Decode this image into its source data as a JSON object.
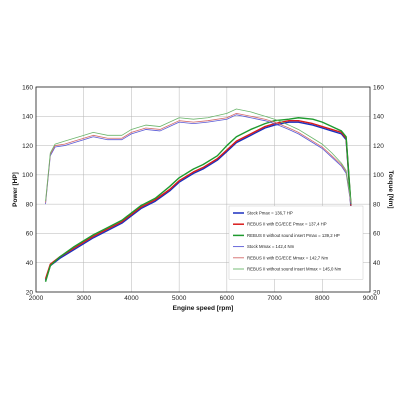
{
  "chart_data": {
    "type": "line",
    "xlabel": "Engine speed [rpm]",
    "ylabel_left": "Power [HP]",
    "ylabel_right": "Torque [Nm]",
    "xlim": [
      2000,
      9000
    ],
    "xticks": [
      2000,
      3000,
      4000,
      5000,
      6000,
      7000,
      8000,
      9000
    ],
    "ylim_left": [
      20,
      160
    ],
    "yticks_left": [
      20,
      40,
      60,
      80,
      100,
      120,
      140,
      160
    ],
    "ylim_right": [
      20,
      160
    ],
    "yticks_right": [
      20,
      40,
      60,
      80,
      100,
      120,
      140,
      160
    ],
    "grid": true,
    "legend_placement": "lower-right inside plot",
    "series": [
      {
        "name": "Stock Pmax = 136,7 HP",
        "axis": "left",
        "color": "#1a2fbf",
        "x": [
          2200,
          2300,
          2500,
          2800,
          3000,
          3200,
          3500,
          3800,
          4000,
          4200,
          4500,
          4800,
          5000,
          5300,
          5500,
          5800,
          6000,
          6200,
          6500,
          6800,
          7000,
          7300,
          7500,
          7800,
          8000,
          8200,
          8400,
          8500,
          8600
        ],
        "values": [
          28,
          38,
          43,
          49,
          53,
          57,
          62,
          67,
          72,
          77,
          82,
          89,
          95,
          101,
          104,
          110,
          116,
          122,
          127,
          132,
          134,
          136,
          136,
          134,
          132,
          130,
          128,
          124,
          78
        ]
      },
      {
        "name": "REBUS II with EG/ECE Pmax = 137,4 HP",
        "axis": "left",
        "color": "#d81b1b",
        "x": [
          2200,
          2300,
          2500,
          2800,
          3000,
          3200,
          3500,
          3800,
          4000,
          4200,
          4500,
          4800,
          5000,
          5300,
          5500,
          5800,
          6000,
          6200,
          6500,
          6800,
          7000,
          7300,
          7500,
          7800,
          8000,
          8200,
          8400,
          8500,
          8600
        ],
        "values": [
          29,
          39,
          44,
          50,
          54,
          58,
          63,
          68,
          73,
          78,
          83,
          90,
          96,
          102,
          105,
          111,
          117,
          123,
          128,
          133,
          135,
          137,
          137,
          135,
          133,
          131,
          129,
          125,
          79
        ]
      },
      {
        "name": "REBUS II without sound insert Pmax = 139,2 HP",
        "axis": "left",
        "color": "#1e9a2e",
        "x": [
          2200,
          2300,
          2500,
          2800,
          3000,
          3200,
          3500,
          3800,
          4000,
          4200,
          4500,
          4800,
          5000,
          5300,
          5500,
          5800,
          6000,
          6200,
          6500,
          6800,
          7000,
          7300,
          7500,
          7800,
          8000,
          8200,
          8400,
          8500,
          8600
        ],
        "values": [
          27,
          38,
          44,
          51,
          55,
          59,
          64,
          69,
          74,
          79,
          84,
          92,
          98,
          104,
          107,
          113,
          120,
          126,
          131,
          135,
          137,
          138,
          139,
          138,
          136,
          133,
          130,
          126,
          80
        ]
      },
      {
        "name": "Stock Mmax = 142,4 Nm",
        "axis": "right",
        "color": "#5a5ad6",
        "x": [
          2200,
          2300,
          2400,
          2600,
          2800,
          3000,
          3200,
          3500,
          3800,
          4000,
          4300,
          4600,
          5000,
          5300,
          5600,
          6000,
          6200,
          6500,
          6800,
          7000,
          7300,
          7500,
          7800,
          8000,
          8200,
          8400,
          8500,
          8600
        ],
        "values": [
          80,
          113,
          119,
          120,
          122,
          124,
          126,
          124,
          124,
          128,
          131,
          130,
          136,
          135,
          136,
          138,
          141,
          139,
          137,
          135,
          131,
          128,
          122,
          118,
          112,
          106,
          101,
          80
        ]
      },
      {
        "name": "REBUS II with EG/ECE Mmax = 142,7 Nm",
        "axis": "right",
        "color": "#d46a6a",
        "x": [
          2200,
          2300,
          2400,
          2600,
          2800,
          3000,
          3200,
          3500,
          3800,
          4000,
          4300,
          4600,
          5000,
          5300,
          5600,
          6000,
          6200,
          6500,
          6800,
          7000,
          7300,
          7500,
          7800,
          8000,
          8200,
          8400,
          8500,
          8600
        ],
        "values": [
          81,
          114,
          120,
          121,
          123,
          125,
          127,
          125,
          125,
          129,
          132,
          131,
          137,
          136,
          137,
          139,
          142,
          140,
          138,
          136,
          132,
          129,
          123,
          119,
          113,
          107,
          102,
          81
        ]
      },
      {
        "name": "REBUS II without sound insert Mmax = 145,0 Nm",
        "axis": "right",
        "color": "#6bb56b",
        "x": [
          2200,
          2300,
          2400,
          2600,
          2800,
          3000,
          3200,
          3500,
          3800,
          4000,
          4300,
          4600,
          5000,
          5300,
          5600,
          6000,
          6200,
          6500,
          6800,
          7000,
          7300,
          7500,
          7800,
          8000,
          8200,
          8400,
          8500,
          8600
        ],
        "values": [
          82,
          115,
          121,
          123,
          125,
          127,
          129,
          127,
          127,
          131,
          134,
          133,
          139,
          138,
          139,
          142,
          145,
          143,
          140,
          138,
          134,
          131,
          125,
          121,
          115,
          108,
          103,
          82
        ]
      }
    ]
  }
}
